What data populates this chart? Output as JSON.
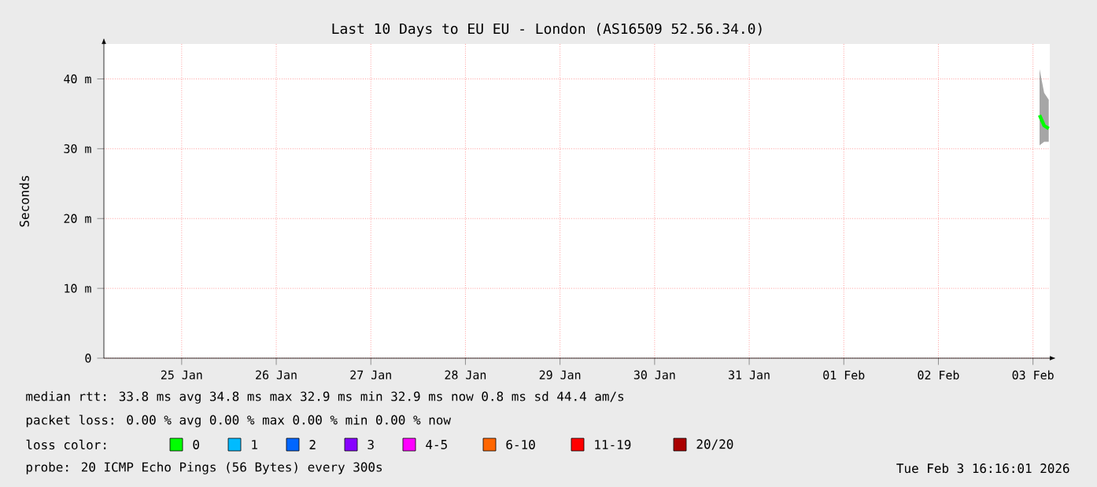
{
  "chart_data": {
    "type": "line",
    "title": "Last 10 Days to EU EU - London (AS16509 52.56.34.0)",
    "ylabel": "Seconds",
    "series": [
      {
        "color": "#00ff00",
        "x": [
          "2026-02-03T13:40",
          "2026-02-03T14:50",
          "2026-02-03T16:00"
        ],
        "values": [
          34.8,
          33.3,
          32.9
        ],
        "lower": [
          30.5,
          31,
          31
        ],
        "upper": [
          41.4,
          38,
          37
        ]
      }
    ],
    "xlim": [
      "2026-01-24T16:16",
      "2026-02-03T16:16"
    ],
    "xticks": [
      {
        "value": "2026-01-25T12:00",
        "label": "25 Jan"
      },
      {
        "value": "2026-01-26T12:00",
        "label": "26 Jan"
      },
      {
        "value": "2026-01-27T12:00",
        "label": "27 Jan"
      },
      {
        "value": "2026-01-28T12:00",
        "label": "28 Jan"
      },
      {
        "value": "2026-01-29T12:00",
        "label": "29 Jan"
      },
      {
        "value": "2026-01-30T12:00",
        "label": "30 Jan"
      },
      {
        "value": "2026-01-31T12:00",
        "label": "31 Jan"
      },
      {
        "value": "2026-02-01T12:00",
        "label": "01 Feb"
      },
      {
        "value": "2026-02-02T12:00",
        "label": "02 Feb"
      },
      {
        "value": "2026-02-03T12:00",
        "label": "03 Feb"
      }
    ],
    "ylim": [
      0,
      45
    ],
    "yticks": [
      0,
      {
        "value": 10,
        "label": "10 m"
      },
      {
        "value": 20,
        "label": "20 m"
      },
      {
        "value": 30,
        "label": "30 m"
      },
      {
        "value": 40,
        "label": "40 m"
      }
    ],
    "grid": true,
    "line_style": "solid",
    "annotations": [
      "median rtt:  33.8 ms avg  34.8 ms max  32.9 ms min  32.9 ms now  0.8 ms sd  44.4   am/s",
      "packet loss: 0.00 % avg  0.00 % max  0.00 % min  0.00 % now",
      "loss color:",
      "0",
      "1",
      "2",
      "3",
      "4-5",
      "6-10",
      "11-19",
      "20/20",
      "probe:       20 ICMP Echo Pings (56 Bytes) every 300s",
      "Tue Feb  3 16:16:01 2026"
    ]
  }
}
